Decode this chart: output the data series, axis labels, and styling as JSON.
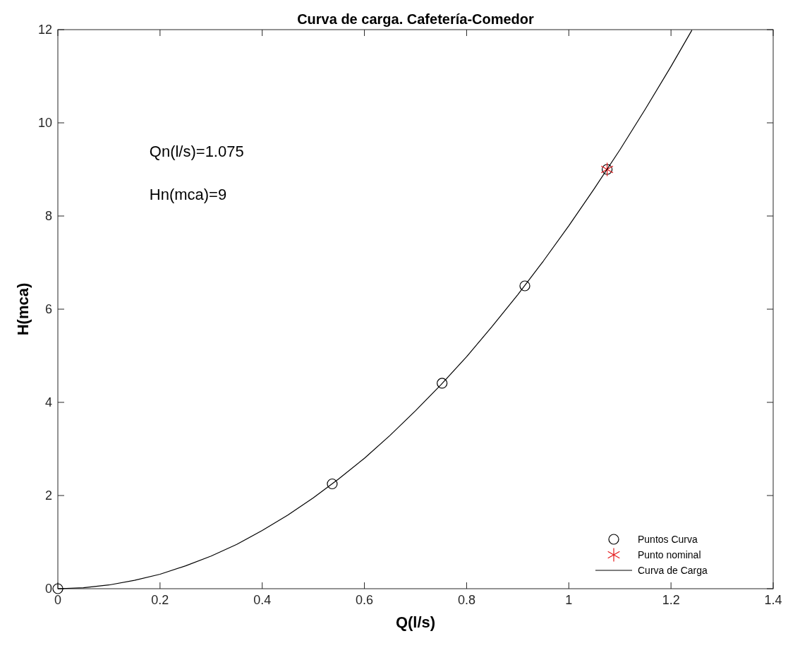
{
  "chart_data": {
    "type": "scatter",
    "title": "Curva de carga. Cafetería-Comedor",
    "xlabel": "Q(l/s)",
    "ylabel": "H(mca)",
    "xlim": [
      0,
      1.4
    ],
    "xticks": [
      0,
      0.2,
      0.4,
      0.6,
      0.8,
      1,
      1.2,
      1.4
    ],
    "ylim": [
      0,
      12
    ],
    "yticks": [
      0,
      2,
      4,
      6,
      8,
      10,
      12
    ],
    "grid": false,
    "legend": "bottom right",
    "annotations": [
      "Qn(l/s)=1.075",
      "Hn(mca)=9"
    ],
    "series": [
      {
        "name": "Puntos Curva",
        "marker": "circle",
        "color": "#000000",
        "x": [
          0,
          0.537,
          0.752,
          0.914,
          1.075
        ],
        "values": [
          0,
          2.25,
          4.41,
          6.5,
          9
        ]
      },
      {
        "name": "Punto nominal",
        "marker": "cross",
        "color": "#e41a1c",
        "x": [
          1.075
        ],
        "values": [
          9
        ]
      },
      {
        "name": "Curva de Carga",
        "type": "line",
        "marker": "none",
        "line_style": "solid",
        "color": "#000000",
        "x": [
          0,
          0.05,
          0.1,
          0.15,
          0.2,
          0.25,
          0.3,
          0.35,
          0.4,
          0.45,
          0.5,
          0.55,
          0.6,
          0.65,
          0.7,
          0.75,
          0.8,
          0.85,
          0.9,
          0.95,
          1,
          1.05,
          1.1,
          1.15,
          1.2,
          1.241
        ],
        "values": [
          0,
          0.02,
          0.08,
          0.18,
          0.31,
          0.49,
          0.7,
          0.95,
          1.25,
          1.58,
          1.95,
          2.36,
          2.8,
          3.29,
          3.82,
          4.38,
          4.98,
          5.63,
          6.31,
          7.03,
          7.79,
          8.59,
          9.42,
          10.3,
          11.21,
          11.99
        ]
      }
    ]
  }
}
